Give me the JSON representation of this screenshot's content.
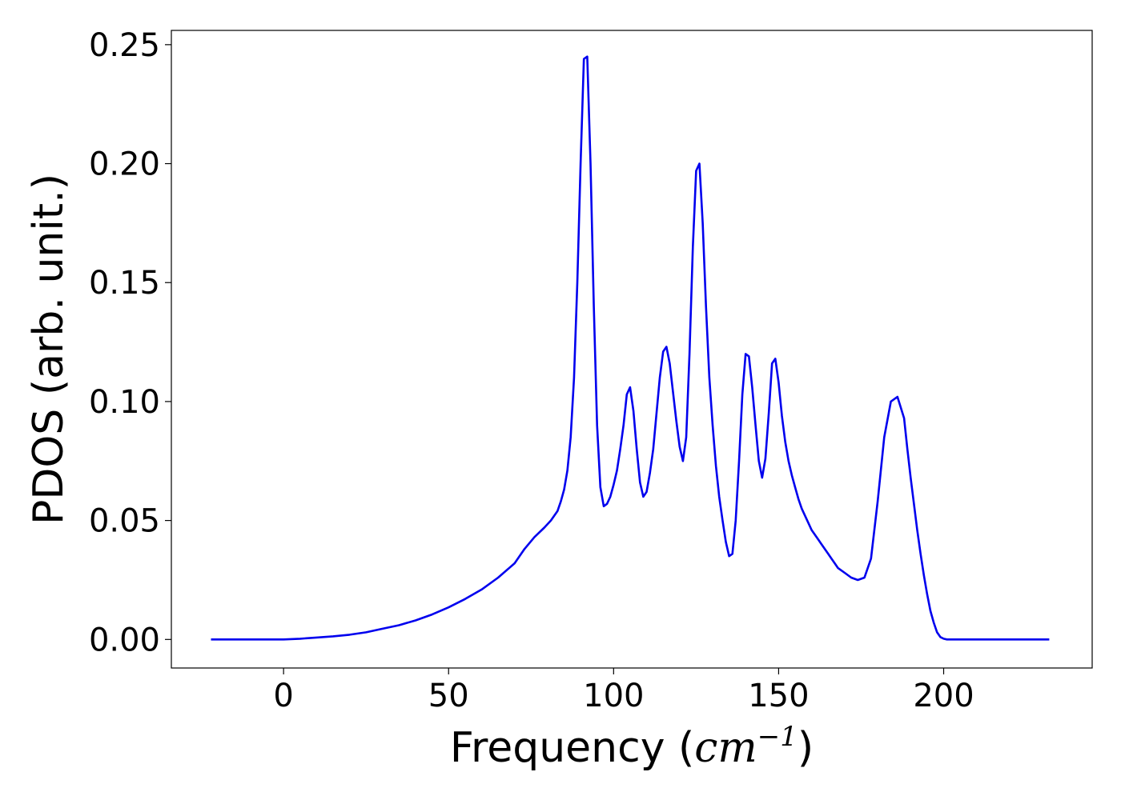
{
  "chart_data": {
    "type": "line",
    "title": "",
    "xlabel_prefix": "Frequency (",
    "xlabel_unit_base": "cm",
    "xlabel_unit_exp": "−1",
    "xlabel_suffix": ")",
    "ylabel": "PDOS (arb. unit.)",
    "xlim": [
      -34,
      245
    ],
    "ylim": [
      -0.012,
      0.256
    ],
    "xticks": [
      0,
      50,
      100,
      150,
      200
    ],
    "xtick_labels": [
      "0",
      "50",
      "100",
      "150",
      "200"
    ],
    "yticks": [
      0.0,
      0.05,
      0.1,
      0.15,
      0.2,
      0.25
    ],
    "ytick_labels": [
      "0.00",
      "0.05",
      "0.10",
      "0.15",
      "0.20",
      "0.25"
    ],
    "grid": false,
    "legend": "none",
    "series": [
      {
        "color": "#0000ee",
        "x": [
          -22,
          0,
          5,
          10,
          15,
          20,
          25,
          30,
          35,
          40,
          45,
          50,
          55,
          60,
          65,
          70,
          73,
          76,
          79,
          81,
          83,
          84,
          85,
          86,
          87,
          88,
          89,
          90,
          91,
          92,
          93,
          94,
          95,
          96,
          97,
          98,
          99,
          100,
          101,
          102,
          103,
          104,
          105,
          106,
          107,
          108,
          109,
          110,
          111,
          112,
          113,
          114,
          115,
          116,
          117,
          118,
          119,
          120,
          121,
          122,
          123,
          124,
          125,
          126,
          127,
          128,
          129,
          130,
          131,
          132,
          133,
          134,
          135,
          136,
          137,
          138,
          139,
          140,
          141,
          142,
          143,
          144,
          145,
          146,
          147,
          148,
          149,
          150,
          151,
          152,
          153,
          154,
          155,
          156,
          157,
          158,
          159,
          160,
          161,
          162,
          163,
          164,
          165,
          166,
          167,
          168,
          170,
          172,
          174,
          176,
          178,
          180,
          182,
          184,
          186,
          188,
          189,
          190,
          191,
          192,
          193,
          194,
          195,
          196,
          197,
          198,
          199,
          200,
          201,
          202,
          203,
          204,
          205,
          206,
          207,
          208,
          209,
          210,
          211,
          212,
          213,
          214,
          215,
          216,
          218,
          220,
          232
        ],
        "y": [
          0.0,
          0.0,
          0.0003,
          0.0008,
          0.0013,
          0.002,
          0.003,
          0.0045,
          0.006,
          0.008,
          0.0105,
          0.0135,
          0.017,
          0.021,
          0.026,
          0.032,
          0.038,
          0.043,
          0.047,
          0.05,
          0.054,
          0.058,
          0.063,
          0.071,
          0.085,
          0.11,
          0.15,
          0.2,
          0.244,
          0.245,
          0.2,
          0.14,
          0.09,
          0.064,
          0.056,
          0.057,
          0.06,
          0.065,
          0.071,
          0.08,
          0.09,
          0.103,
          0.106,
          0.096,
          0.08,
          0.066,
          0.06,
          0.062,
          0.07,
          0.08,
          0.095,
          0.11,
          0.121,
          0.123,
          0.116,
          0.104,
          0.092,
          0.081,
          0.075,
          0.085,
          0.12,
          0.165,
          0.197,
          0.2,
          0.175,
          0.14,
          0.11,
          0.09,
          0.073,
          0.06,
          0.05,
          0.041,
          0.035,
          0.036,
          0.05,
          0.075,
          0.103,
          0.12,
          0.119,
          0.106,
          0.09,
          0.075,
          0.068,
          0.076,
          0.095,
          0.116,
          0.118,
          0.108,
          0.094,
          0.083,
          0.075,
          0.069,
          0.064,
          0.059,
          0.055,
          0.052,
          0.049,
          0.046,
          0.044,
          0.042,
          0.04,
          0.038,
          0.036,
          0.034,
          0.032,
          0.03,
          0.028,
          0.026,
          0.025,
          0.026,
          0.034,
          0.058,
          0.085,
          0.1,
          0.102,
          0.093,
          0.08,
          0.068,
          0.057,
          0.046,
          0.036,
          0.027,
          0.019,
          0.012,
          0.007,
          0.003,
          0.001,
          0.0003,
          0.0,
          0.0,
          0.0,
          0.0,
          0.0,
          0.0,
          0.0,
          0.0,
          0.0,
          0.0,
          0.0,
          0.0,
          0.0,
          0.0,
          0.0,
          0.0,
          0.0,
          0.0,
          0.0
        ]
      }
    ]
  }
}
